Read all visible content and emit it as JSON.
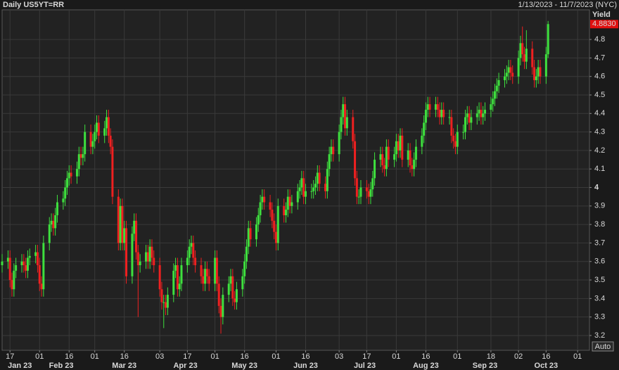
{
  "chart_data": {
    "type": "candlestick",
    "title": "Daily US5YT=RR",
    "subtitle": "1/13/2023 - 11/7/2023 (NYC)",
    "y_label": "Yield",
    "auto_button": "Auto",
    "up_color": "#3ee03e",
    "down_color": "#ee2020",
    "grid": true,
    "xlim": [
      "2023-01-13",
      "2023-11-07"
    ],
    "ylim": [
      3.12,
      4.96
    ],
    "yticks": [
      3.2,
      3.3,
      3.4,
      3.5,
      3.6,
      3.7,
      3.8,
      3.9,
      4,
      4.1,
      4.2,
      4.3,
      4.4,
      4.5,
      4.6,
      4.7,
      4.8
    ],
    "xticks": [
      {
        "value": "2023-01-17",
        "label": "17"
      },
      {
        "value": "2023-02-01",
        "label": "01"
      },
      {
        "value": "2023-02-16",
        "label": "16"
      },
      {
        "value": "2023-03-01",
        "label": "01"
      },
      {
        "value": "2023-03-16",
        "label": "16"
      },
      {
        "value": "2023-04-03",
        "label": "03"
      },
      {
        "value": "2023-04-17",
        "label": "17"
      },
      {
        "value": "2023-05-01",
        "label": "01"
      },
      {
        "value": "2023-05-16",
        "label": "16"
      },
      {
        "value": "2023-06-01",
        "label": "01"
      },
      {
        "value": "2023-06-16",
        "label": "16"
      },
      {
        "value": "2023-07-03",
        "label": "03"
      },
      {
        "value": "2023-07-17",
        "label": "17"
      },
      {
        "value": "2023-08-01",
        "label": "01"
      },
      {
        "value": "2023-08-16",
        "label": "16"
      },
      {
        "value": "2023-09-01",
        "label": "01"
      },
      {
        "value": "2023-09-18",
        "label": "18"
      },
      {
        "value": "2023-10-02",
        "label": "02"
      },
      {
        "value": "2023-10-16",
        "label": "16"
      },
      {
        "value": "2023-11-01",
        "label": "01"
      }
    ],
    "month_ticks": [
      {
        "value": "2023-01-22",
        "label": "Jan 23"
      },
      {
        "value": "2023-02-12",
        "label": "Feb 23"
      },
      {
        "value": "2023-03-16",
        "label": "Mar 23"
      },
      {
        "value": "2023-04-16",
        "label": "Apr 23"
      },
      {
        "value": "2023-05-16",
        "label": "May 23"
      },
      {
        "value": "2023-06-16",
        "label": "Jun 23"
      },
      {
        "value": "2023-07-16",
        "label": "Jul 23"
      },
      {
        "value": "2023-08-16",
        "label": "Aug 23"
      },
      {
        "value": "2023-09-15",
        "label": "Sep 23"
      },
      {
        "value": "2023-10-16",
        "label": "Oct 23"
      }
    ],
    "x": [
      "2023-01-13",
      "2023-01-16",
      "2023-01-17",
      "2023-01-18",
      "2023-01-19",
      "2023-01-20",
      "2023-01-23",
      "2023-01-24",
      "2023-01-25",
      "2023-01-26",
      "2023-01-27",
      "2023-01-30",
      "2023-01-31",
      "2023-02-01",
      "2023-02-02",
      "2023-02-03",
      "2023-02-06",
      "2023-02-07",
      "2023-02-08",
      "2023-02-09",
      "2023-02-10",
      "2023-02-13",
      "2023-02-14",
      "2023-02-15",
      "2023-02-16",
      "2023-02-17",
      "2023-02-20",
      "2023-02-21",
      "2023-02-22",
      "2023-02-23",
      "2023-02-24",
      "2023-02-27",
      "2023-02-28",
      "2023-03-01",
      "2023-03-02",
      "2023-03-03",
      "2023-03-06",
      "2023-03-07",
      "2023-03-08",
      "2023-03-09",
      "2023-03-10",
      "2023-03-13",
      "2023-03-14",
      "2023-03-15",
      "2023-03-16",
      "2023-03-17",
      "2023-03-20",
      "2023-03-21",
      "2023-03-22",
      "2023-03-23",
      "2023-03-24",
      "2023-03-27",
      "2023-03-28",
      "2023-03-29",
      "2023-03-30",
      "2023-03-31",
      "2023-04-03",
      "2023-04-04",
      "2023-04-05",
      "2023-04-06",
      "2023-04-07",
      "2023-04-10",
      "2023-04-11",
      "2023-04-12",
      "2023-04-13",
      "2023-04-14",
      "2023-04-17",
      "2023-04-18",
      "2023-04-19",
      "2023-04-20",
      "2023-04-21",
      "2023-04-24",
      "2023-04-25",
      "2023-04-26",
      "2023-04-27",
      "2023-04-28",
      "2023-05-01",
      "2023-05-02",
      "2023-05-03",
      "2023-05-04",
      "2023-05-05",
      "2023-05-08",
      "2023-05-09",
      "2023-05-10",
      "2023-05-11",
      "2023-05-12",
      "2023-05-15",
      "2023-05-16",
      "2023-05-17",
      "2023-05-18",
      "2023-05-19",
      "2023-05-22",
      "2023-05-23",
      "2023-05-24",
      "2023-05-25",
      "2023-05-26",
      "2023-05-29",
      "2023-05-30",
      "2023-05-31",
      "2023-06-01",
      "2023-06-02",
      "2023-06-05",
      "2023-06-06",
      "2023-06-07",
      "2023-06-08",
      "2023-06-09",
      "2023-06-12",
      "2023-06-13",
      "2023-06-14",
      "2023-06-15",
      "2023-06-16",
      "2023-06-19",
      "2023-06-20",
      "2023-06-21",
      "2023-06-22",
      "2023-06-23",
      "2023-06-26",
      "2023-06-27",
      "2023-06-28",
      "2023-06-29",
      "2023-06-30",
      "2023-07-03",
      "2023-07-04",
      "2023-07-05",
      "2023-07-06",
      "2023-07-07",
      "2023-07-10",
      "2023-07-11",
      "2023-07-12",
      "2023-07-13",
      "2023-07-14",
      "2023-07-17",
      "2023-07-18",
      "2023-07-19",
      "2023-07-20",
      "2023-07-21",
      "2023-07-24",
      "2023-07-25",
      "2023-07-26",
      "2023-07-27",
      "2023-07-28",
      "2023-07-31",
      "2023-08-01",
      "2023-08-02",
      "2023-08-03",
      "2023-08-04",
      "2023-08-07",
      "2023-08-08",
      "2023-08-09",
      "2023-08-10",
      "2023-08-11",
      "2023-08-14",
      "2023-08-15",
      "2023-08-16",
      "2023-08-17",
      "2023-08-18",
      "2023-08-21",
      "2023-08-22",
      "2023-08-23",
      "2023-08-24",
      "2023-08-25",
      "2023-08-28",
      "2023-08-29",
      "2023-08-30",
      "2023-08-31",
      "2023-09-01",
      "2023-09-04",
      "2023-09-05",
      "2023-09-06",
      "2023-09-07",
      "2023-09-08",
      "2023-09-11",
      "2023-09-12",
      "2023-09-13",
      "2023-09-14",
      "2023-09-15",
      "2023-09-18",
      "2023-09-19",
      "2023-09-20",
      "2023-09-21",
      "2023-09-22",
      "2023-09-25",
      "2023-09-26",
      "2023-09-27",
      "2023-09-28",
      "2023-09-29",
      "2023-10-02",
      "2023-10-03",
      "2023-10-04",
      "2023-10-05",
      "2023-10-06",
      "2023-10-09",
      "2023-10-10",
      "2023-10-11",
      "2023-10-12",
      "2023-10-13",
      "2023-10-16",
      "2023-10-17"
    ],
    "open": [
      3.58,
      3.6,
      3.62,
      3.5,
      3.45,
      3.55,
      3.58,
      3.6,
      3.58,
      3.55,
      3.62,
      3.63,
      3.65,
      3.58,
      3.48,
      3.45,
      3.7,
      3.8,
      3.82,
      3.78,
      3.85,
      3.92,
      3.94,
      4.0,
      4.05,
      4.08,
      4.06,
      4.1,
      4.18,
      4.16,
      4.18,
      4.3,
      4.22,
      4.25,
      4.3,
      4.35,
      4.28,
      4.32,
      4.38,
      4.28,
      4.22,
      3.95,
      3.7,
      3.9,
      3.7,
      3.78,
      3.52,
      3.75,
      3.82,
      3.65,
      3.58,
      3.6,
      3.65,
      3.6,
      3.68,
      3.62,
      3.58,
      3.45,
      3.38,
      3.38,
      3.35,
      3.42,
      3.55,
      3.58,
      3.45,
      3.48,
      3.58,
      3.62,
      3.68,
      3.7,
      3.62,
      3.58,
      3.52,
      3.48,
      3.56,
      3.52,
      3.48,
      3.62,
      3.48,
      3.36,
      3.3,
      3.42,
      3.48,
      3.52,
      3.4,
      3.38,
      3.45,
      3.52,
      3.6,
      3.68,
      3.78,
      3.72,
      3.8,
      3.85,
      3.92,
      3.95,
      3.92,
      3.88,
      3.82,
      3.76,
      3.7,
      3.9,
      3.85,
      3.88,
      3.95,
      3.9,
      3.92,
      3.98,
      4.0,
      4.05,
      3.95,
      3.98,
      3.98,
      4.0,
      4.02,
      4.08,
      4.02,
      3.98,
      4.1,
      4.18,
      4.22,
      4.18,
      4.3,
      4.38,
      4.45,
      4.32,
      4.38,
      4.25,
      4.05,
      3.95,
      3.95,
      4.0,
      3.98,
      3.95,
      3.99,
      4.05,
      4.15,
      4.18,
      4.12,
      4.1,
      4.22,
      4.15,
      4.18,
      4.25,
      4.2,
      4.28,
      4.15,
      4.2,
      4.12,
      4.1,
      4.15,
      4.22,
      4.28,
      4.35,
      4.42,
      4.45,
      4.42,
      4.45,
      4.42,
      4.38,
      4.42,
      4.38,
      4.38,
      4.28,
      4.25,
      4.22,
      4.3,
      4.3,
      4.38,
      4.4,
      4.35,
      4.38,
      4.4,
      4.42,
      4.38,
      4.4,
      4.42,
      4.45,
      4.48,
      4.52,
      4.55,
      4.58,
      4.6,
      4.62,
      4.65,
      4.62,
      4.6,
      4.7,
      4.78,
      4.72,
      4.68,
      4.75,
      4.65,
      4.58,
      4.6,
      4.65,
      4.6,
      4.72
    ],
    "high": [
      3.64,
      3.66,
      3.66,
      3.54,
      3.59,
      3.62,
      3.64,
      3.64,
      3.62,
      3.66,
      3.67,
      3.69,
      3.69,
      3.62,
      3.52,
      3.74,
      3.84,
      3.86,
      3.86,
      3.89,
      3.96,
      3.98,
      4.04,
      4.09,
      4.12,
      4.12,
      4.14,
      4.22,
      4.22,
      4.22,
      4.34,
      4.34,
      4.29,
      4.34,
      4.39,
      4.39,
      4.36,
      4.42,
      4.42,
      4.32,
      4.26,
      3.99,
      3.94,
      3.94,
      3.82,
      3.82,
      3.79,
      3.86,
      3.86,
      3.69,
      3.64,
      3.69,
      3.69,
      3.72,
      3.72,
      3.66,
      3.62,
      3.49,
      3.42,
      3.42,
      3.46,
      3.59,
      3.62,
      3.62,
      3.52,
      3.62,
      3.66,
      3.72,
      3.74,
      3.74,
      3.66,
      3.62,
      3.56,
      3.6,
      3.6,
      3.56,
      3.66,
      3.66,
      3.52,
      3.4,
      3.46,
      3.52,
      3.56,
      3.56,
      3.44,
      3.49,
      3.56,
      3.64,
      3.72,
      3.82,
      3.82,
      3.84,
      3.89,
      3.96,
      3.99,
      3.99,
      3.96,
      3.92,
      3.86,
      3.8,
      3.94,
      3.94,
      3.92,
      3.99,
      3.99,
      3.96,
      4.02,
      4.04,
      4.09,
      4.09,
      4.02,
      4.02,
      4.04,
      4.06,
      4.12,
      4.12,
      4.06,
      4.14,
      4.22,
      4.26,
      4.26,
      4.34,
      4.42,
      4.49,
      4.49,
      4.42,
      4.42,
      4.29,
      4.09,
      3.99,
      4.04,
      4.04,
      4.02,
      4.03,
      4.09,
      4.19,
      4.22,
      4.22,
      4.16,
      4.26,
      4.26,
      4.22,
      4.29,
      4.29,
      4.32,
      4.32,
      4.24,
      4.24,
      4.16,
      4.19,
      4.26,
      4.32,
      4.39,
      4.46,
      4.49,
      4.49,
      4.49,
      4.49,
      4.46,
      4.46,
      4.46,
      4.42,
      4.42,
      4.32,
      4.29,
      4.34,
      4.34,
      4.42,
      4.44,
      4.44,
      4.42,
      4.44,
      4.46,
      4.46,
      4.44,
      4.46,
      4.49,
      4.52,
      4.56,
      4.59,
      4.62,
      4.64,
      4.66,
      4.69,
      4.69,
      4.66,
      4.74,
      4.82,
      4.87,
      4.76,
      4.85,
      4.79,
      4.69,
      4.64,
      4.69,
      4.69,
      4.76,
      4.9
    ],
    "low": [
      3.54,
      3.56,
      3.46,
      3.41,
      3.41,
      3.51,
      3.54,
      3.54,
      3.51,
      3.51,
      3.58,
      3.59,
      3.54,
      3.44,
      3.41,
      3.41,
      3.66,
      3.76,
      3.74,
      3.74,
      3.81,
      3.88,
      3.9,
      3.96,
      4.01,
      4.02,
      4.02,
      4.06,
      4.12,
      4.12,
      4.14,
      4.18,
      4.18,
      4.21,
      4.26,
      4.24,
      4.24,
      4.28,
      4.24,
      4.18,
      3.91,
      3.66,
      3.66,
      3.66,
      3.66,
      3.48,
      3.48,
      3.71,
      3.61,
      3.3,
      3.54,
      3.56,
      3.56,
      3.56,
      3.58,
      3.54,
      3.41,
      3.34,
      3.24,
      3.31,
      3.31,
      3.38,
      3.51,
      3.41,
      3.41,
      3.44,
      3.54,
      3.58,
      3.64,
      3.58,
      3.54,
      3.48,
      3.44,
      3.44,
      3.48,
      3.44,
      3.44,
      3.44,
      3.32,
      3.21,
      3.26,
      3.38,
      3.44,
      3.36,
      3.34,
      3.34,
      3.41,
      3.48,
      3.56,
      3.64,
      3.68,
      3.68,
      3.76,
      3.81,
      3.88,
      3.88,
      3.84,
      3.78,
      3.72,
      3.66,
      3.66,
      3.81,
      3.81,
      3.84,
      3.86,
      3.86,
      3.88,
      3.94,
      3.96,
      3.91,
      3.91,
      3.94,
      3.94,
      3.96,
      3.98,
      3.98,
      3.94,
      3.94,
      4.06,
      4.14,
      4.14,
      4.14,
      4.26,
      4.34,
      4.28,
      4.28,
      4.21,
      4.01,
      3.91,
      3.91,
      3.91,
      3.94,
      3.91,
      3.91,
      3.95,
      4.01,
      4.11,
      4.08,
      4.06,
      4.06,
      4.11,
      4.11,
      4.14,
      4.16,
      4.16,
      4.11,
      4.11,
      4.08,
      4.06,
      4.06,
      4.11,
      4.18,
      4.24,
      4.31,
      4.38,
      4.38,
      4.38,
      4.38,
      4.34,
      4.34,
      4.34,
      4.34,
      4.24,
      4.21,
      4.18,
      4.18,
      4.26,
      4.26,
      4.34,
      4.31,
      4.31,
      4.34,
      4.36,
      4.34,
      4.34,
      4.36,
      4.38,
      4.41,
      4.44,
      4.48,
      4.51,
      4.54,
      4.56,
      4.58,
      4.58,
      4.56,
      4.56,
      4.66,
      4.68,
      4.64,
      4.64,
      4.61,
      4.54,
      4.54,
      4.56,
      4.56,
      4.56,
      4.7
    ],
    "close": [
      3.6,
      3.62,
      3.5,
      3.45,
      3.55,
      3.58,
      3.6,
      3.58,
      3.55,
      3.62,
      3.63,
      3.65,
      3.58,
      3.48,
      3.45,
      3.7,
      3.8,
      3.82,
      3.78,
      3.85,
      3.92,
      3.94,
      4.0,
      4.05,
      4.08,
      4.06,
      4.1,
      4.18,
      4.16,
      4.18,
      4.3,
      4.22,
      4.25,
      4.3,
      4.35,
      4.28,
      4.32,
      4.38,
      4.28,
      4.22,
      3.95,
      3.7,
      3.9,
      3.7,
      3.78,
      3.52,
      3.75,
      3.82,
      3.65,
      3.58,
      3.6,
      3.65,
      3.6,
      3.68,
      3.62,
      3.58,
      3.45,
      3.38,
      3.38,
      3.35,
      3.42,
      3.55,
      3.58,
      3.45,
      3.48,
      3.58,
      3.62,
      3.68,
      3.7,
      3.62,
      3.58,
      3.52,
      3.48,
      3.56,
      3.52,
      3.48,
      3.62,
      3.48,
      3.36,
      3.3,
      3.42,
      3.48,
      3.52,
      3.4,
      3.38,
      3.45,
      3.52,
      3.6,
      3.68,
      3.78,
      3.72,
      3.8,
      3.85,
      3.92,
      3.95,
      3.92,
      3.88,
      3.82,
      3.76,
      3.7,
      3.9,
      3.85,
      3.88,
      3.95,
      3.9,
      3.92,
      3.98,
      4.0,
      4.05,
      3.95,
      3.98,
      3.98,
      4.0,
      4.02,
      4.08,
      4.02,
      3.98,
      4.1,
      4.18,
      4.22,
      4.18,
      4.3,
      4.38,
      4.45,
      4.32,
      4.38,
      4.25,
      4.05,
      3.95,
      3.95,
      4.0,
      3.98,
      3.95,
      3.99,
      4.05,
      4.15,
      4.18,
      4.12,
      4.1,
      4.22,
      4.15,
      4.18,
      4.25,
      4.2,
      4.28,
      4.15,
      4.2,
      4.12,
      4.1,
      4.15,
      4.22,
      4.28,
      4.35,
      4.42,
      4.45,
      4.42,
      4.45,
      4.42,
      4.38,
      4.42,
      4.38,
      4.38,
      4.28,
      4.25,
      4.22,
      4.3,
      4.3,
      4.38,
      4.4,
      4.35,
      4.38,
      4.4,
      4.42,
      4.38,
      4.4,
      4.42,
      4.45,
      4.48,
      4.52,
      4.55,
      4.58,
      4.6,
      4.62,
      4.65,
      4.62,
      4.6,
      4.7,
      4.78,
      4.72,
      4.68,
      4.75,
      4.65,
      4.58,
      4.6,
      4.65,
      4.6,
      4.72,
      4.883
    ],
    "close_label": "4.8830"
  }
}
